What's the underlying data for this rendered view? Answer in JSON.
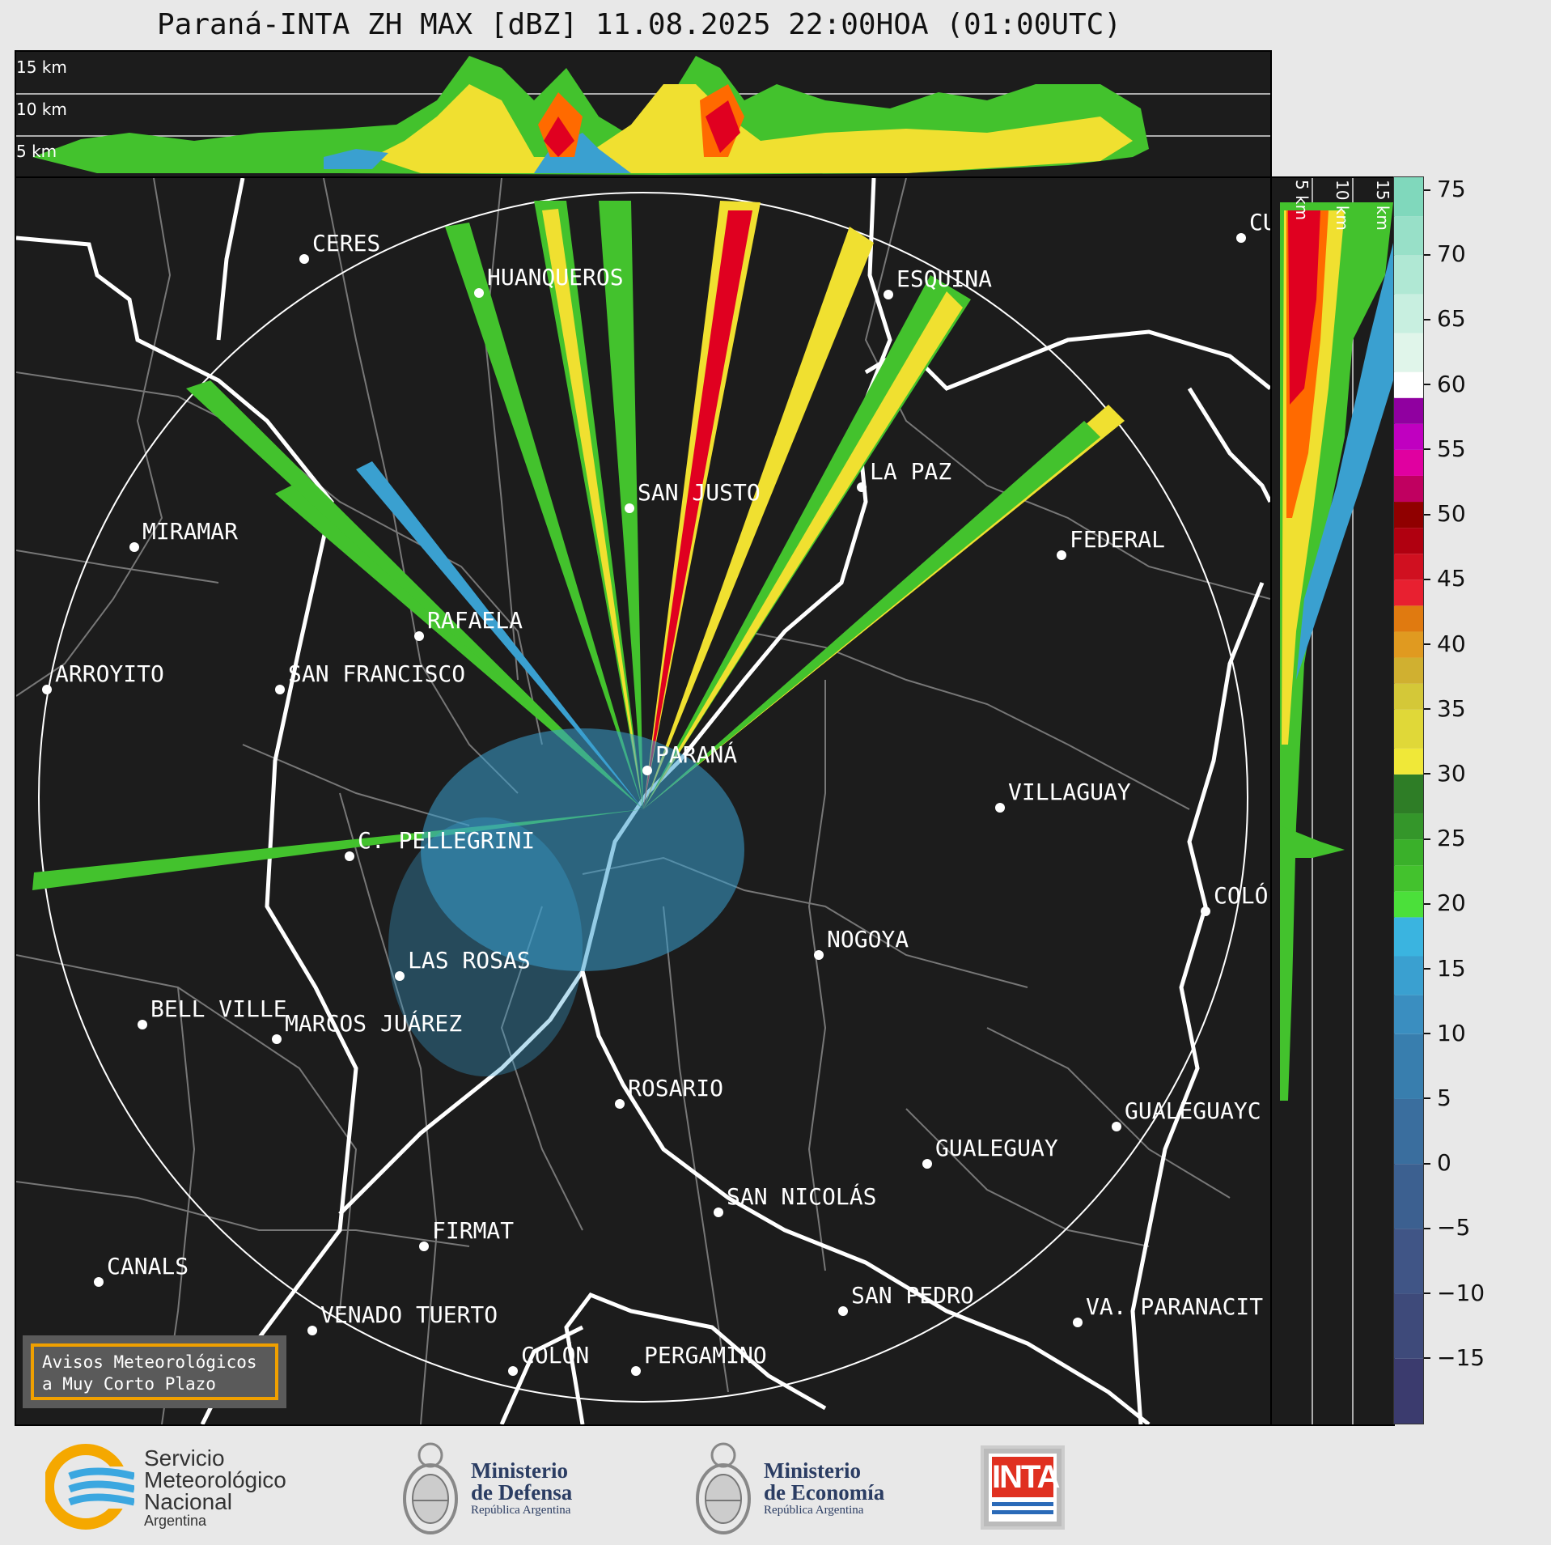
{
  "title": "Paraná-INTA ZH MAX [dBZ] 11.08.2025 22:00HOA (01:00UTC)",
  "altitude_labels_top": [
    "15 km",
    "10 km",
    "5 km"
  ],
  "altitude_labels_right": [
    "5 km",
    "10 km",
    "15 km"
  ],
  "cities": [
    {
      "name": "CERES"
    },
    {
      "name": "HUANQUEROS"
    },
    {
      "name": "ESQUINA"
    },
    {
      "name": "CU"
    },
    {
      "name": "SAN JUSTO"
    },
    {
      "name": "LA PAZ"
    },
    {
      "name": "MIRAMAR"
    },
    {
      "name": "FEDERAL"
    },
    {
      "name": "RAFAELA"
    },
    {
      "name": "ARROYITO"
    },
    {
      "name": "SAN FRANCISCO"
    },
    {
      "name": "PARANÁ"
    },
    {
      "name": "VILLAGUAY"
    },
    {
      "name": "C. PELLEGRINI"
    },
    {
      "name": "COLÓ"
    },
    {
      "name": "NOGOYA"
    },
    {
      "name": "LAS ROSAS"
    },
    {
      "name": "BELL VILLE"
    },
    {
      "name": "MARCOS JUÁREZ"
    },
    {
      "name": "ROSARIO"
    },
    {
      "name": "GUALEGUAYC"
    },
    {
      "name": "GUALEGUAY"
    },
    {
      "name": "SAN NICOLÁS"
    },
    {
      "name": "FIRMAT"
    },
    {
      "name": "CANALS"
    },
    {
      "name": "SAN PEDRO"
    },
    {
      "name": "VA. PARANACIT"
    },
    {
      "name": "VENADO TUERTO"
    },
    {
      "name": "COLÓN"
    },
    {
      "name": "PERGAMINO"
    }
  ],
  "colorbar": {
    "ticks": [
      "75",
      "70",
      "65",
      "60",
      "55",
      "50",
      "45",
      "40",
      "35",
      "30",
      "25",
      "20",
      "15",
      "10",
      "5",
      "0",
      "−5",
      "−10",
      "−15"
    ],
    "range": [
      -20,
      76
    ]
  },
  "aviso": {
    "line1": "Avisos Meteorológicos",
    "line2": "a Muy Corto Plazo"
  },
  "logos": {
    "smn": {
      "line1": "Servicio",
      "line2": "Meteorológico",
      "line3": "Nacional",
      "sub": "Argentina"
    },
    "defensa": {
      "line1": "Ministerio",
      "line2": "de Defensa",
      "sub": "República Argentina"
    },
    "economia": {
      "line1": "Ministerio",
      "line2": "de Economía",
      "sub": "República Argentina"
    },
    "inta": {
      "label": "INTA"
    }
  }
}
